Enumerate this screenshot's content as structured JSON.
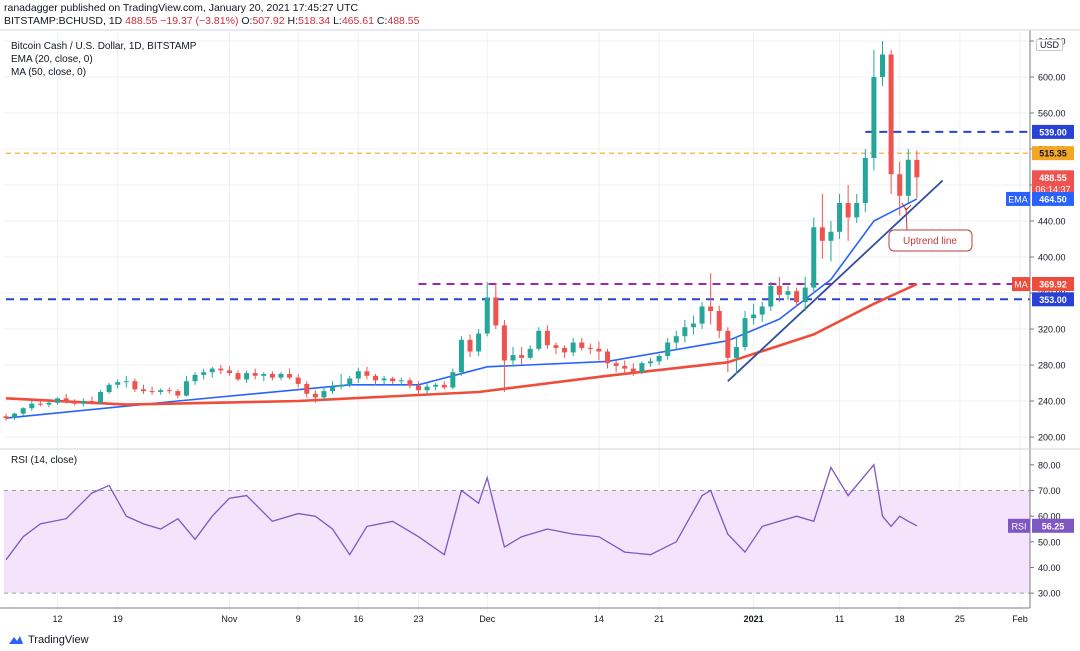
{
  "header": {
    "line1": "ranadagger published on TradingView.com, January 20, 2021 17:45:27 UTC",
    "symbol": "BITSTAMP:BCHUSD, 1D",
    "price": "488.55",
    "change": "−19.37 (−3.81%)",
    "o_label": "O:",
    "o": "507.92",
    "h_label": "H:",
    "h": "518.34",
    "l_label": "L:",
    "l": "465.61",
    "c_label": "C:",
    "c": "488.55"
  },
  "legend": {
    "title": "Bitcoin Cash / U.S. Dollar, 1D, BITSTAMP",
    "ema": "EMA (20, close, 0)",
    "ma": "MA (50, close, 0)",
    "rsi": "RSI (14, close)"
  },
  "currency": "USD",
  "footer": {
    "brand": "TradingView"
  },
  "colors": {
    "up": "#26a69a",
    "down": "#ef5350",
    "ema": "#2962ff",
    "ma": "#ef4d3c",
    "rsi": "#7e57c2",
    "resistance_orange": "#f5a623",
    "support_purple": "#9c27b0",
    "support_blue": "#2942d6",
    "trendline": "#2f4e9c"
  },
  "chart_data": [
    {
      "type": "candlestick",
      "title": "Bitcoin Cash / U.S. Dollar, 1D, BITSTAMP",
      "ylim": [
        190,
        650
      ],
      "y_ticks": [
        200,
        240,
        280,
        320,
        360,
        400,
        440,
        480,
        520,
        560,
        600,
        640
      ],
      "x_tick_labels": [
        "12",
        "19",
        "Nov",
        "9",
        "16",
        "23",
        "Dec",
        "14",
        "21",
        "2021",
        "11",
        "18",
        "25",
        "Feb"
      ],
      "x_range": [
        "2020-10-06",
        "2021-02-01"
      ],
      "x_ticks": [
        "2020-10-12",
        "2020-10-19",
        "2020-11-01",
        "2020-11-09",
        "2020-11-16",
        "2020-11-23",
        "2020-12-01",
        "2020-12-14",
        "2020-12-21",
        "2021-01-01",
        "2021-01-11",
        "2021-01-18",
        "2021-01-25",
        "2021-02-01"
      ],
      "ohlc_series": [
        [
          "2020-10-06",
          223,
          226,
          218,
          221
        ],
        [
          "2020-10-07",
          221,
          227,
          219,
          226
        ],
        [
          "2020-10-08",
          226,
          233,
          224,
          232
        ],
        [
          "2020-10-09",
          232,
          240,
          229,
          237
        ],
        [
          "2020-10-10",
          237,
          241,
          234,
          236
        ],
        [
          "2020-10-11",
          236,
          240,
          233,
          238
        ],
        [
          "2020-10-12",
          238,
          244,
          236,
          243
        ],
        [
          "2020-10-13",
          243,
          248,
          237,
          239
        ],
        [
          "2020-10-14",
          239,
          242,
          235,
          237
        ],
        [
          "2020-10-15",
          237,
          243,
          234,
          240
        ],
        [
          "2020-10-16",
          240,
          245,
          236,
          238
        ],
        [
          "2020-10-17",
          238,
          252,
          236,
          250
        ],
        [
          "2020-10-18",
          250,
          260,
          248,
          258
        ],
        [
          "2020-10-19",
          258,
          264,
          254,
          261
        ],
        [
          "2020-10-20",
          261,
          268,
          255,
          262
        ],
        [
          "2020-10-21",
          262,
          265,
          250,
          253
        ],
        [
          "2020-10-22",
          253,
          258,
          248,
          251
        ],
        [
          "2020-10-23",
          251,
          256,
          247,
          250
        ],
        [
          "2020-10-24",
          250,
          254,
          247,
          252
        ],
        [
          "2020-10-25",
          252,
          255,
          248,
          251
        ],
        [
          "2020-10-26",
          251,
          253,
          243,
          246
        ],
        [
          "2020-10-27",
          246,
          268,
          245,
          262
        ],
        [
          "2020-10-28",
          262,
          272,
          258,
          269
        ],
        [
          "2020-10-29",
          269,
          276,
          264,
          272
        ],
        [
          "2020-10-30",
          272,
          278,
          266,
          276
        ],
        [
          "2020-10-31",
          276,
          280,
          270,
          274
        ],
        [
          "2020-11-01",
          274,
          279,
          268,
          271
        ],
        [
          "2020-11-02",
          271,
          274,
          262,
          264
        ],
        [
          "2020-11-03",
          264,
          274,
          260,
          271
        ],
        [
          "2020-11-04",
          271,
          276,
          264,
          268
        ],
        [
          "2020-11-05",
          268,
          272,
          262,
          270
        ],
        [
          "2020-11-06",
          270,
          273,
          263,
          266
        ],
        [
          "2020-11-07",
          266,
          272,
          263,
          270
        ],
        [
          "2020-11-08",
          270,
          276,
          264,
          266
        ],
        [
          "2020-11-09",
          266,
          270,
          255,
          259
        ],
        [
          "2020-11-10",
          259,
          262,
          244,
          248
        ],
        [
          "2020-11-11",
          248,
          252,
          238,
          244
        ],
        [
          "2020-11-12",
          244,
          256,
          240,
          251
        ],
        [
          "2020-11-13",
          251,
          262,
          248,
          256
        ],
        [
          "2020-11-14",
          256,
          270,
          253,
          258
        ],
        [
          "2020-11-15",
          258,
          268,
          255,
          265
        ],
        [
          "2020-11-16",
          265,
          277,
          260,
          273
        ],
        [
          "2020-11-17",
          273,
          278,
          264,
          268
        ],
        [
          "2020-11-18",
          268,
          270,
          258,
          263
        ],
        [
          "2020-11-19",
          263,
          268,
          258,
          265
        ],
        [
          "2020-11-20",
          265,
          267,
          259,
          262
        ],
        [
          "2020-11-21",
          262,
          266,
          258,
          263
        ],
        [
          "2020-11-22",
          263,
          266,
          254,
          257
        ],
        [
          "2020-11-23",
          257,
          262,
          248,
          252
        ],
        [
          "2020-11-24",
          252,
          260,
          247,
          256
        ],
        [
          "2020-11-25",
          256,
          260,
          252,
          258
        ],
        [
          "2020-11-26",
          258,
          262,
          253,
          255
        ],
        [
          "2020-11-27",
          255,
          276,
          253,
          272
        ],
        [
          "2020-11-28",
          272,
          312,
          268,
          308
        ],
        [
          "2020-11-29",
          308,
          314,
          289,
          295
        ],
        [
          "2020-11-30",
          295,
          320,
          290,
          315
        ],
        [
          "2020-12-01",
          315,
          372,
          312,
          355
        ],
        [
          "2020-12-02",
          355,
          370,
          320,
          324
        ],
        [
          "2020-12-03",
          324,
          330,
          250,
          285
        ],
        [
          "2020-12-04",
          285,
          300,
          278,
          291
        ],
        [
          "2020-12-05",
          291,
          300,
          280,
          288
        ],
        [
          "2020-12-06",
          288,
          302,
          286,
          298
        ],
        [
          "2020-12-07",
          298,
          322,
          296,
          318
        ],
        [
          "2020-12-08",
          318,
          324,
          298,
          302
        ],
        [
          "2020-12-09",
          302,
          305,
          292,
          299
        ],
        [
          "2020-12-10",
          299,
          302,
          288,
          294
        ],
        [
          "2020-12-11",
          294,
          310,
          290,
          305
        ],
        [
          "2020-12-12",
          305,
          310,
          296,
          299
        ],
        [
          "2020-12-13",
          299,
          304,
          292,
          298
        ],
        [
          "2020-12-14",
          298,
          306,
          285,
          295
        ],
        [
          "2020-12-15",
          295,
          298,
          276,
          282
        ],
        [
          "2020-12-16",
          282,
          286,
          272,
          279
        ],
        [
          "2020-12-17",
          279,
          285,
          270,
          276
        ],
        [
          "2020-12-18",
          276,
          282,
          268,
          272
        ],
        [
          "2020-12-19",
          272,
          284,
          270,
          282
        ],
        [
          "2020-12-20",
          282,
          288,
          278,
          284
        ],
        [
          "2020-12-21",
          284,
          292,
          280,
          290
        ],
        [
          "2020-12-22",
          290,
          310,
          286,
          305
        ],
        [
          "2020-12-23",
          305,
          318,
          296,
          312
        ],
        [
          "2020-12-24",
          312,
          330,
          305,
          322
        ],
        [
          "2020-12-25",
          322,
          335,
          314,
          326
        ],
        [
          "2020-12-26",
          326,
          350,
          320,
          345
        ],
        [
          "2020-12-27",
          345,
          382,
          325,
          340
        ],
        [
          "2020-12-28",
          340,
          346,
          310,
          318
        ],
        [
          "2020-12-29",
          318,
          322,
          272,
          288
        ],
        [
          "2020-12-30",
          288,
          312,
          270,
          300
        ],
        [
          "2020-12-31",
          300,
          340,
          296,
          332
        ],
        [
          "2021-01-01",
          332,
          348,
          325,
          336
        ],
        [
          "2021-01-02",
          336,
          350,
          328,
          345
        ],
        [
          "2021-01-03",
          345,
          372,
          340,
          368
        ],
        [
          "2021-01-04",
          368,
          378,
          350,
          358
        ],
        [
          "2021-01-05",
          358,
          368,
          352,
          362
        ],
        [
          "2021-01-06",
          362,
          366,
          345,
          350
        ],
        [
          "2021-01-07",
          350,
          378,
          340,
          366
        ],
        [
          "2021-01-08",
          366,
          444,
          360,
          433
        ],
        [
          "2021-01-09",
          433,
          470,
          398,
          418
        ],
        [
          "2021-01-10",
          418,
          440,
          395,
          428
        ],
        [
          "2021-01-11",
          428,
          470,
          420,
          460
        ],
        [
          "2021-01-12",
          460,
          480,
          418,
          444
        ],
        [
          "2021-01-13",
          444,
          470,
          438,
          460
        ],
        [
          "2021-01-14",
          460,
          520,
          450,
          510
        ],
        [
          "2021-01-15",
          510,
          630,
          496,
          600
        ],
        [
          "2021-01-16",
          600,
          640,
          590,
          625
        ],
        [
          "2021-01-17",
          625,
          630,
          470,
          492
        ],
        [
          "2021-01-18",
          492,
          506,
          446,
          468
        ],
        [
          "2021-01-19",
          468,
          520,
          460,
          508
        ],
        [
          "2021-01-20",
          507.92,
          518.34,
          465.61,
          488.55
        ]
      ],
      "series": [
        {
          "name": "EMA (20, close, 0)",
          "last_value": 464.5,
          "x": [
            "2020-10-06",
            "2020-10-26",
            "2020-11-15",
            "2020-11-23",
            "2020-12-01",
            "2020-12-15",
            "2020-12-29",
            "2021-01-04",
            "2021-01-10",
            "2021-01-15",
            "2021-01-20"
          ],
          "values": [
            221,
            240,
            258,
            258,
            278,
            284,
            307,
            331,
            375,
            440,
            464.5
          ]
        },
        {
          "name": "MA (50, close, 0)",
          "last_value": 369.92,
          "x": [
            "2020-10-06",
            "2020-10-20",
            "2020-11-09",
            "2020-11-30",
            "2020-12-15",
            "2020-12-29",
            "2021-01-08",
            "2021-01-15",
            "2021-01-20"
          ],
          "values": [
            243,
            236,
            240,
            250,
            268,
            283,
            314,
            348,
            369.92
          ]
        }
      ],
      "levels": [
        {
          "value": 539.0,
          "label": "539.00",
          "style": "dashed",
          "color": "#2942d6"
        },
        {
          "value": 515.35,
          "label": "515.35",
          "style": "dashed",
          "color": "#f5a623"
        },
        {
          "value": 370.0,
          "label": "370.00",
          "style": "dashed",
          "color": "#9c27b0"
        },
        {
          "value": 353.0,
          "label": "353.00",
          "style": "dashed",
          "color": "#2942d6"
        }
      ],
      "price_labels": [
        {
          "value": 488.55,
          "label": "488.55",
          "sub": "06:14:37",
          "color": "#ef5350"
        },
        {
          "value": 464.5,
          "label": "464.50",
          "tag": "EMA",
          "color": "#2962ff"
        },
        {
          "value": 369.92,
          "label": "369.92",
          "tag": "MA",
          "color": "#ef4d3c"
        }
      ],
      "trendline": {
        "x": [
          "2020-12-29",
          "2021-01-23"
        ],
        "y": [
          262,
          485
        ]
      },
      "annotation": "Uptrend line"
    },
    {
      "type": "line",
      "title": "RSI (14, close)",
      "ylim": [
        25,
        85
      ],
      "y_ticks": [
        30,
        40,
        50,
        60,
        70,
        80
      ],
      "band": [
        30,
        70
      ],
      "last_value": 56.25,
      "last_label": "56.25",
      "tag": "RSI",
      "x": [
        "2020-10-06",
        "2020-10-08",
        "2020-10-10",
        "2020-10-13",
        "2020-10-16",
        "2020-10-18",
        "2020-10-20",
        "2020-10-22",
        "2020-10-24",
        "2020-10-26",
        "2020-10-28",
        "2020-10-30",
        "2020-11-01",
        "2020-11-03",
        "2020-11-06",
        "2020-11-09",
        "2020-11-11",
        "2020-11-13",
        "2020-11-15",
        "2020-11-17",
        "2020-11-20",
        "2020-11-23",
        "2020-11-26",
        "2020-11-28",
        "2020-11-30",
        "2020-12-01",
        "2020-12-03",
        "2020-12-05",
        "2020-12-08",
        "2020-12-11",
        "2020-12-14",
        "2020-12-17",
        "2020-12-20",
        "2020-12-23",
        "2020-12-26",
        "2020-12-27",
        "2020-12-29",
        "2020-12-31",
        "2021-01-02",
        "2021-01-04",
        "2021-01-06",
        "2021-01-08",
        "2021-01-10",
        "2021-01-12",
        "2021-01-15",
        "2021-01-16",
        "2021-01-17",
        "2021-01-18",
        "2021-01-19",
        "2021-01-20"
      ],
      "values": [
        43,
        52,
        57,
        59,
        69,
        72,
        60,
        57,
        55,
        59,
        51,
        60,
        67,
        68,
        58,
        61,
        60,
        55,
        45,
        56,
        58,
        52,
        45,
        70,
        65,
        75,
        48,
        52,
        55,
        53,
        52,
        46,
        45,
        50,
        68,
        70,
        53,
        46,
        56,
        58,
        60,
        58,
        79,
        68,
        80,
        60,
        56,
        60,
        58,
        56.25
      ]
    }
  ]
}
